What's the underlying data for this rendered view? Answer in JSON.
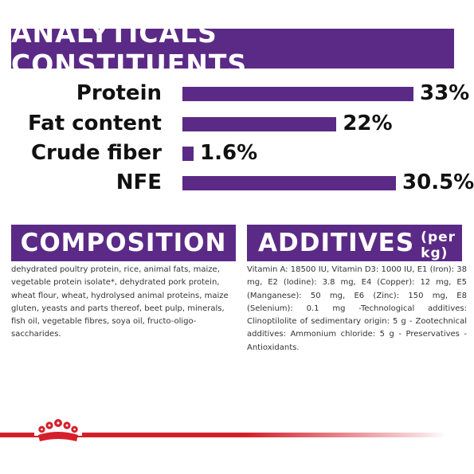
{
  "analytics": {
    "title": "ANALYTICALS CONSTITUENTS",
    "rows": [
      {
        "label": "Protein",
        "value_text": "33%",
        "value": 33
      },
      {
        "label": "Fat content",
        "value_text": "22%",
        "value": 22
      },
      {
        "label": "Crude fiber",
        "value_text": "1.6%",
        "value": 1.6
      },
      {
        "label": "NFE",
        "value_text": "30.5%",
        "value": 30.5
      }
    ]
  },
  "composition": {
    "title": "COMPOSITION",
    "text": "dehydrated poultry protein, rice, animal fats, maize, vegetable protein isolate*, dehydrated pork protein, wheat flour, wheat, hydrolysed animal proteins, maize gluten, yeasts and parts thereof, beet pulp, minerals, fish oil, vegetable fibres, soya oil, fructo-oligo-saccharides."
  },
  "additives": {
    "title": "ADDITIVES",
    "subtitle": "(per kg)",
    "text": "Vitamin A: 18500 IU, Vitamin D3: 1000 IU, E1 (Iron): 38 mg, E2 (Iodine): 3.8 mg, E4 (Copper): 12 mg, E5 (Manganese): 50 mg, E6 (Zinc): 150 mg, E8 (Selenium): 0.1 mg -Technological additives: Clinoptilolite of sedimentary origin: 5 g - Zootechnical additives: Ammonium chloride: 5 g - Preservatives - Antioxidants."
  },
  "colors": {
    "brand_purple": "#5b2a86",
    "brand_red": "#d41f2b"
  },
  "logo": {
    "icon": "royal-canin-crown-icon"
  }
}
